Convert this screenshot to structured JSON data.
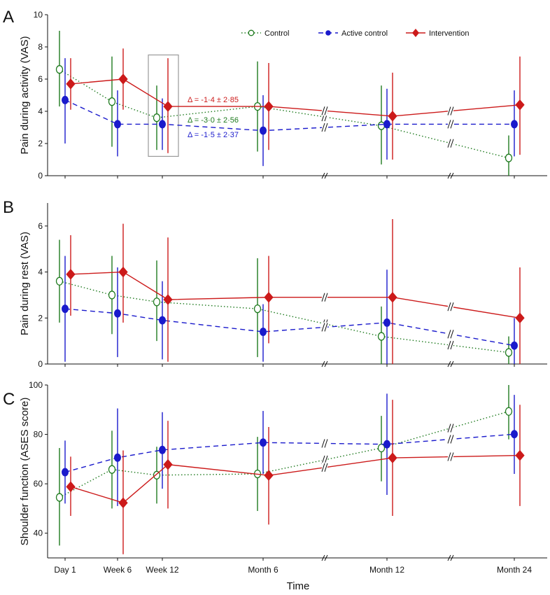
{
  "chart_data": [
    {
      "panel": "A",
      "type": "line",
      "ylabel": "Pain during activity (VAS)",
      "ylim": [
        0,
        10
      ],
      "yticks": [
        0,
        2,
        4,
        6,
        8,
        10
      ],
      "categories": [
        "Day 1",
        "Week 6",
        "Week 12",
        "Month 6",
        "Month 12",
        "Month 24"
      ],
      "series": [
        {
          "name": "Control",
          "values": [
            6.6,
            4.6,
            3.6,
            4.3,
            3.1,
            1.1
          ],
          "err_low": [
            4.3,
            1.8,
            1.6,
            1.5,
            0.7,
            0.0
          ],
          "err_high": [
            9.0,
            7.4,
            5.6,
            7.1,
            5.6,
            2.5
          ]
        },
        {
          "name": "Active control",
          "values": [
            4.7,
            3.2,
            3.2,
            2.8,
            3.2,
            3.2
          ],
          "err_low": [
            2.0,
            1.2,
            1.6,
            0.6,
            1.0,
            1.2
          ],
          "err_high": [
            7.3,
            5.3,
            4.8,
            5.0,
            5.4,
            5.3
          ]
        },
        {
          "name": "Intervention",
          "values": [
            5.7,
            6.0,
            4.3,
            4.3,
            3.7,
            4.4
          ],
          "err_low": [
            4.1,
            4.1,
            1.4,
            1.6,
            1.0,
            1.3
          ],
          "err_high": [
            7.3,
            7.9,
            7.3,
            7.0,
            6.4,
            7.4
          ]
        }
      ],
      "annotations": [
        {
          "text": "Δ = -1·4 ± 2·85",
          "color": "#cc1a1a"
        },
        {
          "text": "Δ = -3·0 ± 2·56",
          "color": "#1e7a1e"
        },
        {
          "text": "Δ = -1·5 ± 2·37",
          "color": "#1a1acc"
        }
      ],
      "legend": "top-right",
      "highlight_box": "Week 12"
    },
    {
      "panel": "B",
      "type": "line",
      "ylabel": "Pain during rest (VAS)",
      "ylim": [
        0,
        7
      ],
      "yticks": [
        0,
        2,
        4,
        6
      ],
      "categories": [
        "Day 1",
        "Week 6",
        "Week 12",
        "Month 6",
        "Month 12",
        "Month 24"
      ],
      "series": [
        {
          "name": "Control",
          "values": [
            3.6,
            3.0,
            2.7,
            2.4,
            1.2,
            0.5
          ],
          "err_low": [
            1.8,
            1.3,
            1.0,
            0.3,
            0.0,
            0.0
          ],
          "err_high": [
            5.4,
            4.7,
            4.5,
            4.6,
            2.5,
            1.2
          ]
        },
        {
          "name": "Active control",
          "values": [
            2.4,
            2.2,
            1.9,
            1.4,
            1.8,
            0.8
          ],
          "err_low": [
            0.1,
            0.3,
            0.2,
            0.1,
            0.0,
            0.0
          ],
          "err_high": [
            4.7,
            4.2,
            3.6,
            2.6,
            4.1,
            2.0
          ]
        },
        {
          "name": "Intervention",
          "values": [
            3.9,
            4.0,
            2.8,
            2.9,
            2.9,
            2.0
          ],
          "err_low": [
            2.1,
            1.8,
            0.1,
            0.9,
            0.0,
            0.0
          ],
          "err_high": [
            5.6,
            6.1,
            5.5,
            4.7,
            6.3,
            4.2
          ]
        }
      ]
    },
    {
      "panel": "C",
      "type": "line",
      "ylabel": "Shoulder function (ASES score)",
      "ylim": [
        30,
        100
      ],
      "yticks": [
        40,
        60,
        80,
        100
      ],
      "xlabel": "Time",
      "categories": [
        "Day 1",
        "Week 6",
        "Week 12",
        "Month 6",
        "Month 12",
        "Month 24"
      ],
      "series": [
        {
          "name": "Control",
          "values": [
            54.5,
            65.8,
            63.5,
            64.0,
            74.5,
            89.3
          ],
          "err_low": [
            35.0,
            50.0,
            52.0,
            49.0,
            61.0,
            78.0
          ],
          "err_high": [
            74.5,
            81.5,
            75.0,
            79.0,
            87.5,
            100.0
          ]
        },
        {
          "name": "Active control",
          "values": [
            64.7,
            70.6,
            73.7,
            76.7,
            76.0,
            80.1
          ],
          "err_low": [
            52.0,
            51.0,
            58.0,
            64.0,
            55.5,
            64.0
          ],
          "err_high": [
            77.5,
            90.5,
            89.0,
            89.5,
            96.5,
            96.0
          ]
        },
        {
          "name": "Intervention",
          "values": [
            58.8,
            52.3,
            67.8,
            63.4,
            70.5,
            71.5
          ],
          "err_low": [
            47.0,
            31.5,
            50.0,
            43.5,
            47.0,
            51.0
          ],
          "err_high": [
            71.0,
            73.5,
            85.5,
            83.0,
            94.0,
            92.0
          ]
        }
      ]
    }
  ],
  "series_styles": [
    {
      "name": "Control",
      "color": "#1e7a1e",
      "dash": "dotted",
      "marker": "open-circle"
    },
    {
      "name": "Active control",
      "color": "#1a1acc",
      "dash": "dashed",
      "marker": "filled-circle"
    },
    {
      "name": "Intervention",
      "color": "#cc1a1a",
      "dash": "solid",
      "marker": "diamond"
    }
  ]
}
